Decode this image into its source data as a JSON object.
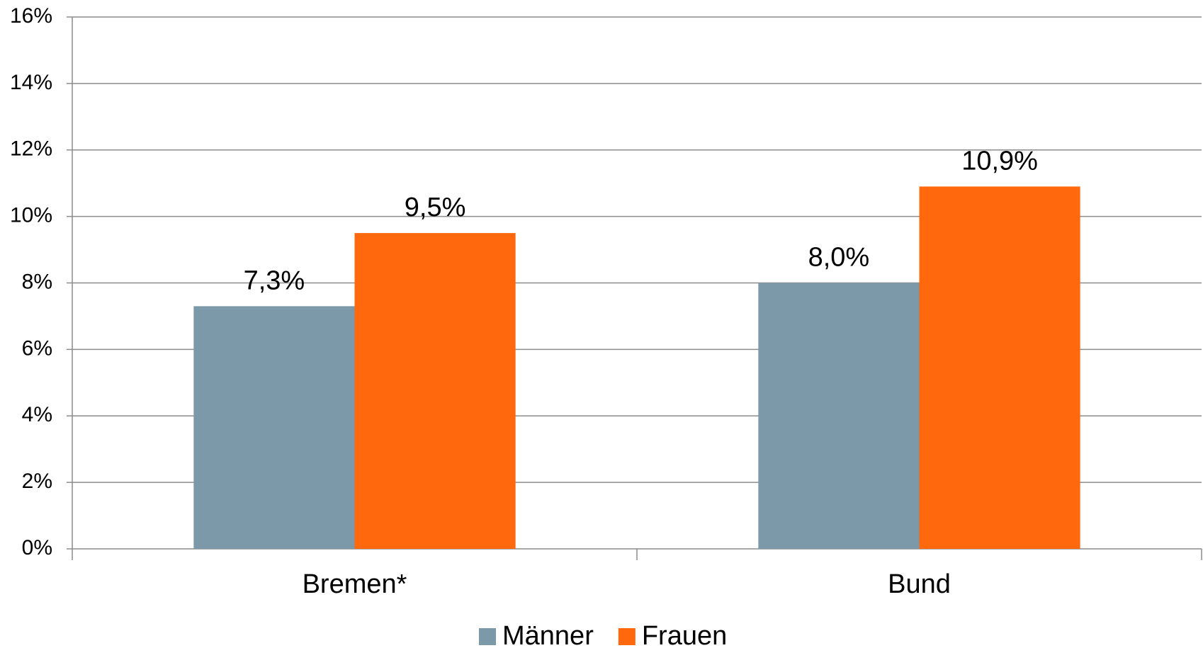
{
  "chart_data": {
    "type": "bar",
    "categories": [
      "Bremen*",
      "Bund"
    ],
    "series": [
      {
        "name": "Männer",
        "color": "#7c99aa",
        "values": [
          7.3,
          8.0
        ],
        "value_labels": [
          "7,3%",
          "8,0%"
        ]
      },
      {
        "name": "Frauen",
        "color": "#ff680c",
        "values": [
          9.5,
          10.9
        ],
        "value_labels": [
          "9,5%",
          "10,9%"
        ]
      }
    ],
    "ylim": [
      0,
      16
    ],
    "yticks": [
      {
        "value": 0,
        "label": "0%"
      },
      {
        "value": 2,
        "label": "2%"
      },
      {
        "value": 4,
        "label": "4%"
      },
      {
        "value": 6,
        "label": "6%"
      },
      {
        "value": 8,
        "label": "8%"
      },
      {
        "value": 10,
        "label": "10%"
      },
      {
        "value": 12,
        "label": "12%"
      },
      {
        "value": 14,
        "label": "14%"
      },
      {
        "value": 16,
        "label": "16%"
      }
    ],
    "grid": true,
    "legend": "bottom"
  }
}
